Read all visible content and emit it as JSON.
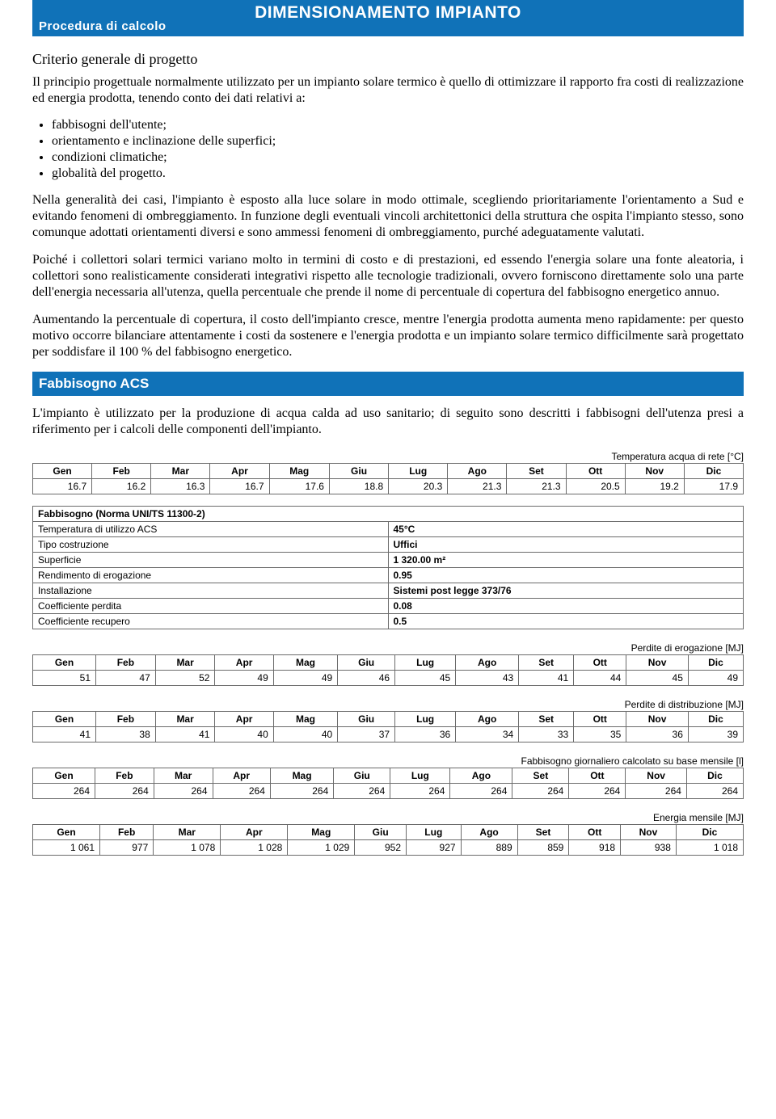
{
  "titlebar": {
    "main": "DIMENSIONAMENTO IMPIANTO",
    "sub": "Procedura di calcolo"
  },
  "criterio": {
    "heading": "Criterio generale di progetto",
    "para1": "Il principio progettuale normalmente utilizzato per un impianto solare termico è quello di ottimizzare il rapporto fra costi di realizzazione ed energia prodotta, tenendo conto dei dati relativi a:",
    "bullets": [
      "fabbisogni dell'utente;",
      "orientamento e inclinazione delle superfici;",
      "condizioni climatiche;",
      "globalità del progetto."
    ],
    "para2": "Nella generalità dei casi, l'impianto è esposto alla luce solare in modo ottimale, scegliendo prioritariamente l'orientamento a Sud e evitando fenomeni di ombreggiamento. In funzione degli eventuali vincoli architettonici della struttura che ospita l'impianto stesso, sono comunque adottati orientamenti diversi e sono ammessi fenomeni di ombreggiamento, purché adeguatamente valutati.",
    "para3": "Poiché i collettori solari termici variano molto in termini di costo e di prestazioni, ed essendo l'energia solare una fonte aleatoria, i collettori sono realisticamente considerati integrativi rispetto alle tecnologie tradizionali, ovvero forniscono direttamente solo una parte dell'energia necessaria all'utenza, quella percentuale che prende il nome di percentuale di copertura del fabbisogno energetico annuo.",
    "para4": "Aumentando la percentuale di copertura, il costo dell'impianto cresce, mentre l'energia prodotta aumenta meno rapidamente: per questo motivo occorre bilanciare attentamente i costi da sostenere e l'energia prodotta e un impianto solare termico difficilmente sarà progettato per soddisfare il 100 % del fabbisogno energetico."
  },
  "fabbisogno": {
    "band": "Fabbisogno ACS",
    "intro": "L'impianto è utilizzato per la produzione di acqua calda ad uso sanitario; di seguito sono descritti i fabbisogni dell'utenza presi a riferimento per i calcoli delle componenti dell'impianto."
  },
  "months": [
    "Gen",
    "Feb",
    "Mar",
    "Apr",
    "Mag",
    "Giu",
    "Lug",
    "Ago",
    "Set",
    "Ott",
    "Nov",
    "Dic"
  ],
  "tempRete": {
    "caption": "Temperatura acqua di rete [°C]",
    "values": [
      "16.7",
      "16.2",
      "16.3",
      "16.7",
      "17.6",
      "18.8",
      "20.3",
      "21.3",
      "21.3",
      "20.5",
      "19.2",
      "17.9"
    ]
  },
  "norma": {
    "title": "Fabbisogno (Norma UNI/TS 11300-2)",
    "rows": [
      [
        "Temperatura di utilizzo ACS",
        "45°C"
      ],
      [
        "Tipo costruzione",
        "Uffici"
      ],
      [
        "Superficie",
        "1 320.00 m²"
      ],
      [
        "Rendimento di erogazione",
        "0.95"
      ],
      [
        "Installazione",
        "Sistemi post legge 373/76"
      ],
      [
        "Coefficiente perdita",
        "0.08"
      ],
      [
        "Coefficiente recupero",
        "0.5"
      ]
    ]
  },
  "perditeErog": {
    "caption": "Perdite di erogazione [MJ]",
    "values": [
      "51",
      "47",
      "52",
      "49",
      "49",
      "46",
      "45",
      "43",
      "41",
      "44",
      "45",
      "49"
    ]
  },
  "perditeDistr": {
    "caption": "Perdite di distribuzione [MJ]",
    "values": [
      "41",
      "38",
      "41",
      "40",
      "40",
      "37",
      "36",
      "34",
      "33",
      "35",
      "36",
      "39"
    ]
  },
  "fabbGiorn": {
    "caption": "Fabbisogno giornaliero calcolato su base mensile [l]",
    "values": [
      "264",
      "264",
      "264",
      "264",
      "264",
      "264",
      "264",
      "264",
      "264",
      "264",
      "264",
      "264"
    ]
  },
  "energiaMens": {
    "caption": "Energia mensile [MJ]",
    "values": [
      "1 061",
      "977",
      "1 078",
      "1 028",
      "1 029",
      "952",
      "927",
      "889",
      "859",
      "918",
      "938",
      "1 018"
    ]
  }
}
